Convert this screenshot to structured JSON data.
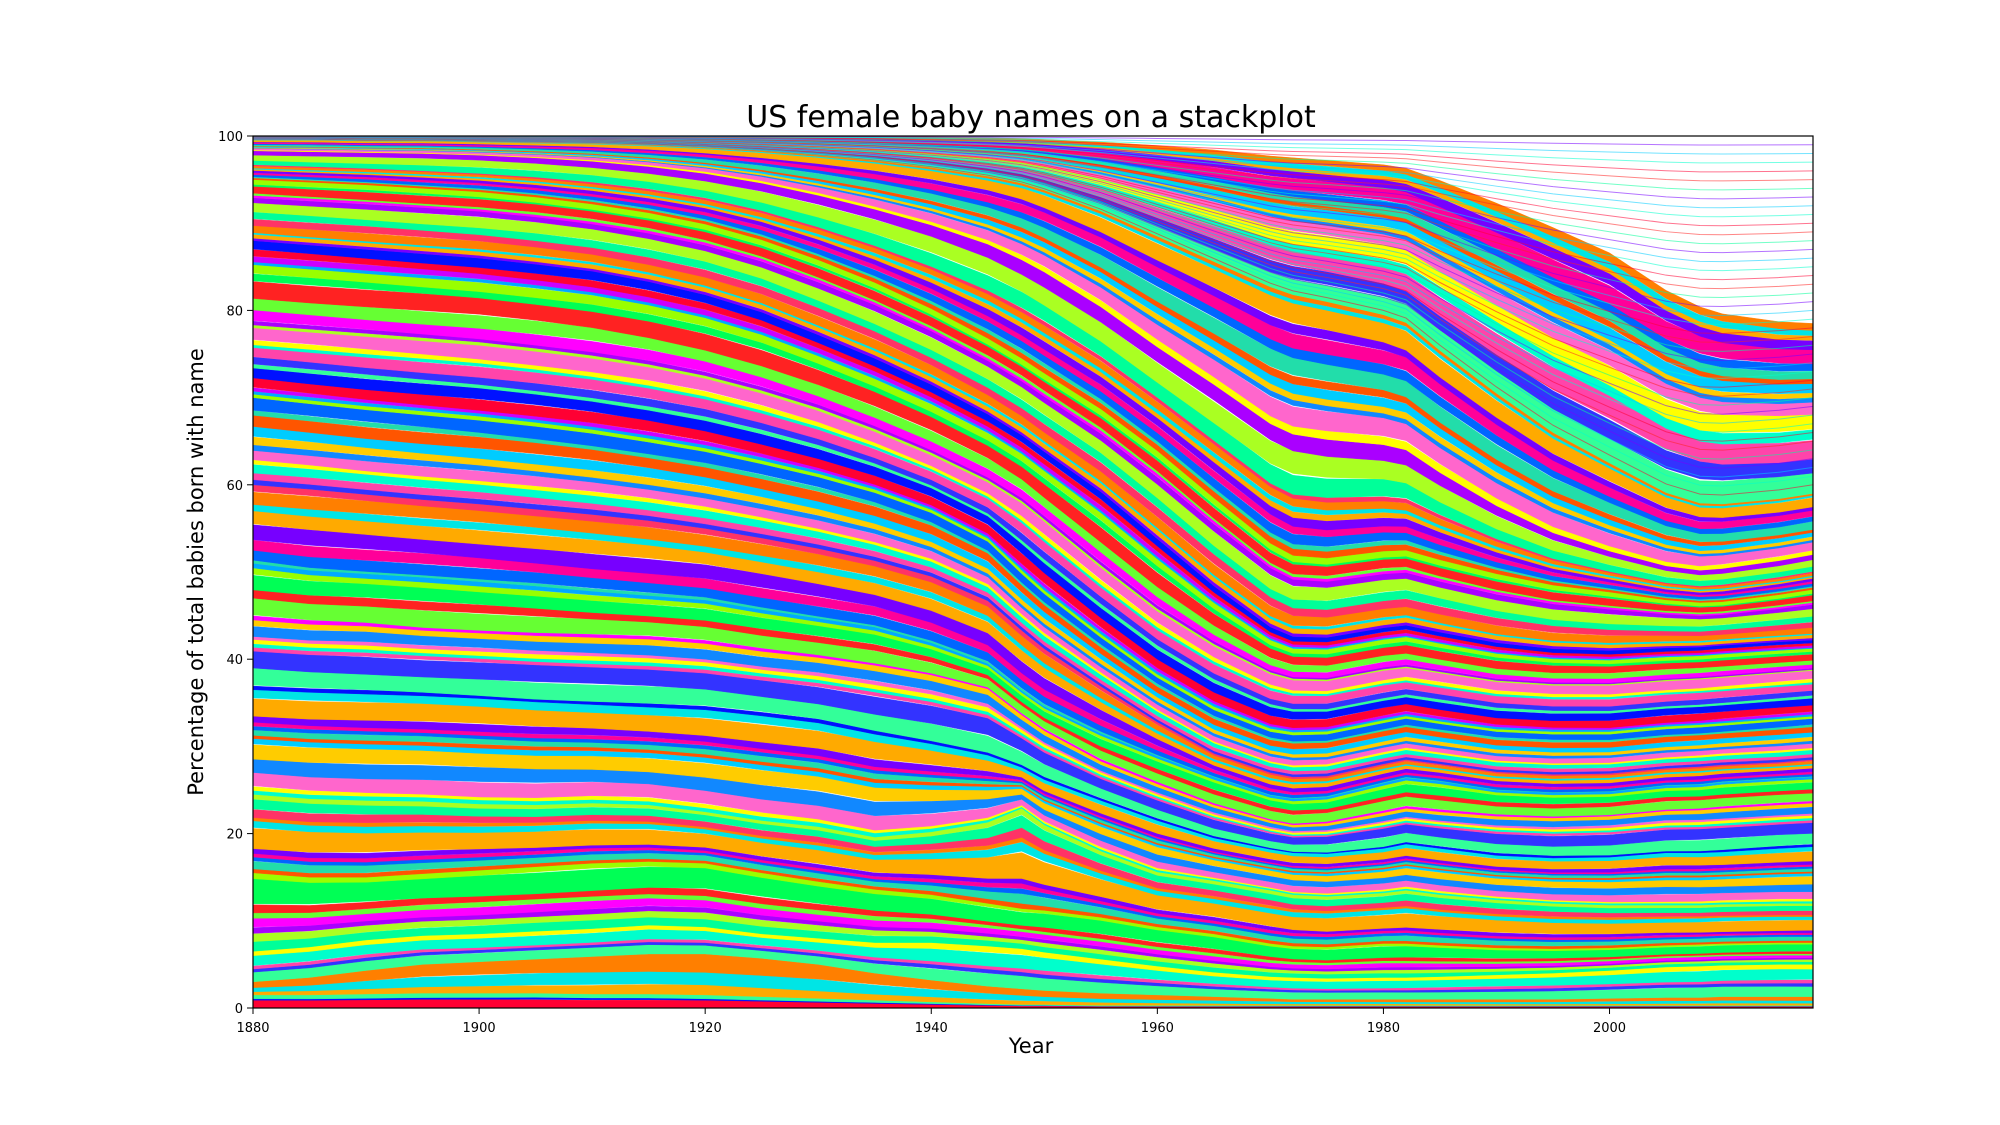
{
  "chart_data": {
    "type": "area",
    "stacked": true,
    "title": "US female baby names on a stackplot",
    "xlabel": "Year",
    "ylabel": "Percentage of total babies born with name",
    "xlim": [
      1880,
      2018
    ],
    "ylim": [
      0,
      100
    ],
    "xticks": [
      1880,
      1900,
      1920,
      1940,
      1960,
      1980,
      2000
    ],
    "yticks": [
      0,
      20,
      40,
      60,
      80,
      100
    ],
    "grid": false,
    "legend": "none",
    "x": [
      1880,
      1885,
      1890,
      1895,
      1900,
      1905,
      1910,
      1915,
      1920,
      1925,
      1930,
      1935,
      1940,
      1945,
      1948,
      1950,
      1955,
      1960,
      1965,
      1970,
      1972,
      1975,
      1980,
      1982,
      1985,
      1990,
      1995,
      2000,
      2005,
      2008,
      2010,
      2015,
      2018
    ],
    "reference_boundaries": [
      {
        "values": [
          1.5,
          1.5,
          1.6,
          1.7,
          1.7,
          1.7,
          1.6,
          1.6,
          1.5,
          1.3,
          1.1,
          0.9,
          0.7,
          0.5,
          0.4,
          0.4,
          0.3,
          0.3,
          0.3,
          0.3,
          0.3,
          0.3,
          0.3,
          0.3,
          0.3,
          0.3,
          0.3,
          0.3,
          0.3,
          0.3,
          0.3,
          0.3,
          0.3
        ]
      },
      {
        "values": [
          3.0,
          3.5,
          4.3,
          5.0,
          5.3,
          5.6,
          5.9,
          6.2,
          6.2,
          5.7,
          5.0,
          4.0,
          3.2,
          2.5,
          2.2,
          2.0,
          1.7,
          1.5,
          1.3,
          1.1,
          1.0,
          1.0,
          1.0,
          1.0,
          1.0,
          1.0,
          1.0,
          1.1,
          1.2,
          1.2,
          1.3,
          1.3,
          1.3
        ]
      },
      {
        "values": [
          6.5,
          7.0,
          7.8,
          8.3,
          8.5,
          8.8,
          9.1,
          9.5,
          9.3,
          8.5,
          8.0,
          7.5,
          7.5,
          7.1,
          6.8,
          6.4,
          5.6,
          4.8,
          4.1,
          3.6,
          3.5,
          3.4,
          3.5,
          3.5,
          3.6,
          3.8,
          4.0,
          4.3,
          4.7,
          4.8,
          4.9,
          5.0,
          5.0
        ]
      },
      {
        "values": [
          15.5,
          15.0,
          15.0,
          15.4,
          15.8,
          16.2,
          16.6,
          16.8,
          16.6,
          15.5,
          14.5,
          13.6,
          13.0,
          12.0,
          11.4,
          11.2,
          10.4,
          9.3,
          8.5,
          7.4,
          7.1,
          7.0,
          7.4,
          7.4,
          7.2,
          6.9,
          6.8,
          6.9,
          7.2,
          7.3,
          7.4,
          7.5,
          7.5
        ]
      },
      {
        "values": [
          24.5,
          24.0,
          23.8,
          23.7,
          23.4,
          23.3,
          23.5,
          23.3,
          22.5,
          21.5,
          20.8,
          19.6,
          20.2,
          21.3,
          22.9,
          21.0,
          18.0,
          15.6,
          14.6,
          13.5,
          13.0,
          12.8,
          13.2,
          13.5,
          13.0,
          12.4,
          12.0,
          11.8,
          11.8,
          11.8,
          11.9,
          12.0,
          12.0
        ]
      },
      {
        "values": [
          36.5,
          36.2,
          36.0,
          35.8,
          35.5,
          35.1,
          34.8,
          34.5,
          34.2,
          33.5,
          32.7,
          31.4,
          30.3,
          29.0,
          27.6,
          26.2,
          23.8,
          21.5,
          19.5,
          18.2,
          17.8,
          17.7,
          18.3,
          18.8,
          18.3,
          17.5,
          17.2,
          17.3,
          17.8,
          17.8,
          17.9,
          18.3,
          18.5
        ]
      },
      {
        "values": [
          44.5,
          44.0,
          43.8,
          43.3,
          43.0,
          42.7,
          42.5,
          42.3,
          41.8,
          40.9,
          40.2,
          39.3,
          38.2,
          36.6,
          33.6,
          31.8,
          28.3,
          25.7,
          23.3,
          21.5,
          21.0,
          21.2,
          22.4,
          22.9,
          22.5,
          22.0,
          21.8,
          22.0,
          22.6,
          22.7,
          22.9,
          23.3,
          23.5
        ]
      },
      {
        "values": [
          51.0,
          50.2,
          49.8,
          49.4,
          48.9,
          48.4,
          47.8,
          47.3,
          46.8,
          45.7,
          44.7,
          43.7,
          41.9,
          39.5,
          36.4,
          34.6,
          31.5,
          28.9,
          26.5,
          24.4,
          24.0,
          24.2,
          25.8,
          26.4,
          26.0,
          25.0,
          24.7,
          24.8,
          25.5,
          25.6,
          25.9,
          26.3,
          26.5
        ]
      },
      {
        "values": [
          60.0,
          59.5,
          58.9,
          58.3,
          57.8,
          57.2,
          56.6,
          55.9,
          55.0,
          53.9,
          52.7,
          51.3,
          49.5,
          46.7,
          43.3,
          41.2,
          36.9,
          32.8,
          29.2,
          27.0,
          26.5,
          26.6,
          28.0,
          28.5,
          28.0,
          27.1,
          26.8,
          26.9,
          27.5,
          27.7,
          27.9,
          28.2,
          28.5
        ]
      },
      {
        "values": [
          70.0,
          69.3,
          68.6,
          68.0,
          67.4,
          66.7,
          65.9,
          64.9,
          63.8,
          62.4,
          60.9,
          59.1,
          56.8,
          53.5,
          49.8,
          47.5,
          42.5,
          37.9,
          34.2,
          31.7,
          31.3,
          31.4,
          32.7,
          33.2,
          32.6,
          31.7,
          31.4,
          31.4,
          32.0,
          32.2,
          32.4,
          32.9,
          33.2
        ]
      },
      {
        "values": [
          78.0,
          77.5,
          77.0,
          76.5,
          76.0,
          75.3,
          74.5,
          73.5,
          72.2,
          70.5,
          68.5,
          66.1,
          63.4,
          60.3,
          57.9,
          55.8,
          50.5,
          45.5,
          41.5,
          38.3,
          37.6,
          37.5,
          38.7,
          39.0,
          38.4,
          37.4,
          37.0,
          37.0,
          37.5,
          37.7,
          37.9,
          38.4,
          38.7
        ]
      },
      {
        "values": [
          88.0,
          87.5,
          87.0,
          86.5,
          86.0,
          85.3,
          84.5,
          83.3,
          81.8,
          79.8,
          77.2,
          74.5,
          71.5,
          68.1,
          65.7,
          63.8,
          59.2,
          53.8,
          48.4,
          43.7,
          42.6,
          42.5,
          43.6,
          43.9,
          43.1,
          41.9,
          41.2,
          41.0,
          41.3,
          41.4,
          41.6,
          42.0,
          42.2
        ]
      },
      {
        "values": [
          95.0,
          94.7,
          94.4,
          94.0,
          93.6,
          93.0,
          92.2,
          91.2,
          89.9,
          88.1,
          85.8,
          83.2,
          80.2,
          76.8,
          74.5,
          72.8,
          68.7,
          63.9,
          58.5,
          53.3,
          51.9,
          51.6,
          52.4,
          52.5,
          51.4,
          49.8,
          48.5,
          47.7,
          46.8,
          46.5,
          46.6,
          47.4,
          48.0
        ]
      },
      {
        "values": [
          98.3,
          98.2,
          98.1,
          98.0,
          97.8,
          97.5,
          97.1,
          96.5,
          95.7,
          94.6,
          93.2,
          91.6,
          89.8,
          87.6,
          85.8,
          84.4,
          80.4,
          75.8,
          71.5,
          67.0,
          65.8,
          65.2,
          64.6,
          64.0,
          61.4,
          57.6,
          54.5,
          52.4,
          50.7,
          50.2,
          50.4,
          51.3,
          52.0
        ]
      },
      {
        "values": [
          99.6,
          99.6,
          99.5,
          99.5,
          99.4,
          99.3,
          99.2,
          99.0,
          98.7,
          98.3,
          97.8,
          97.2,
          96.4,
          95.4,
          94.6,
          93.8,
          91.4,
          88.5,
          85.6,
          82.7,
          81.8,
          81.0,
          79.5,
          78.6,
          75.4,
          70.5,
          66.0,
          62.5,
          59.1,
          57.9,
          57.8,
          58.4,
          59.0
        ]
      },
      {
        "values": [
          100.0,
          100.0,
          100.0,
          100.0,
          100.0,
          100.0,
          100.0,
          100.0,
          100.0,
          100.0,
          100.0,
          100.0,
          99.9,
          99.8,
          99.7,
          99.6,
          99.3,
          98.9,
          98.4,
          97.7,
          97.5,
          97.2,
          96.7,
          96.3,
          94.9,
          92.3,
          89.5,
          86.6,
          82.3,
          80.4,
          79.6,
          78.7,
          78.5
        ]
      }
    ]
  }
}
